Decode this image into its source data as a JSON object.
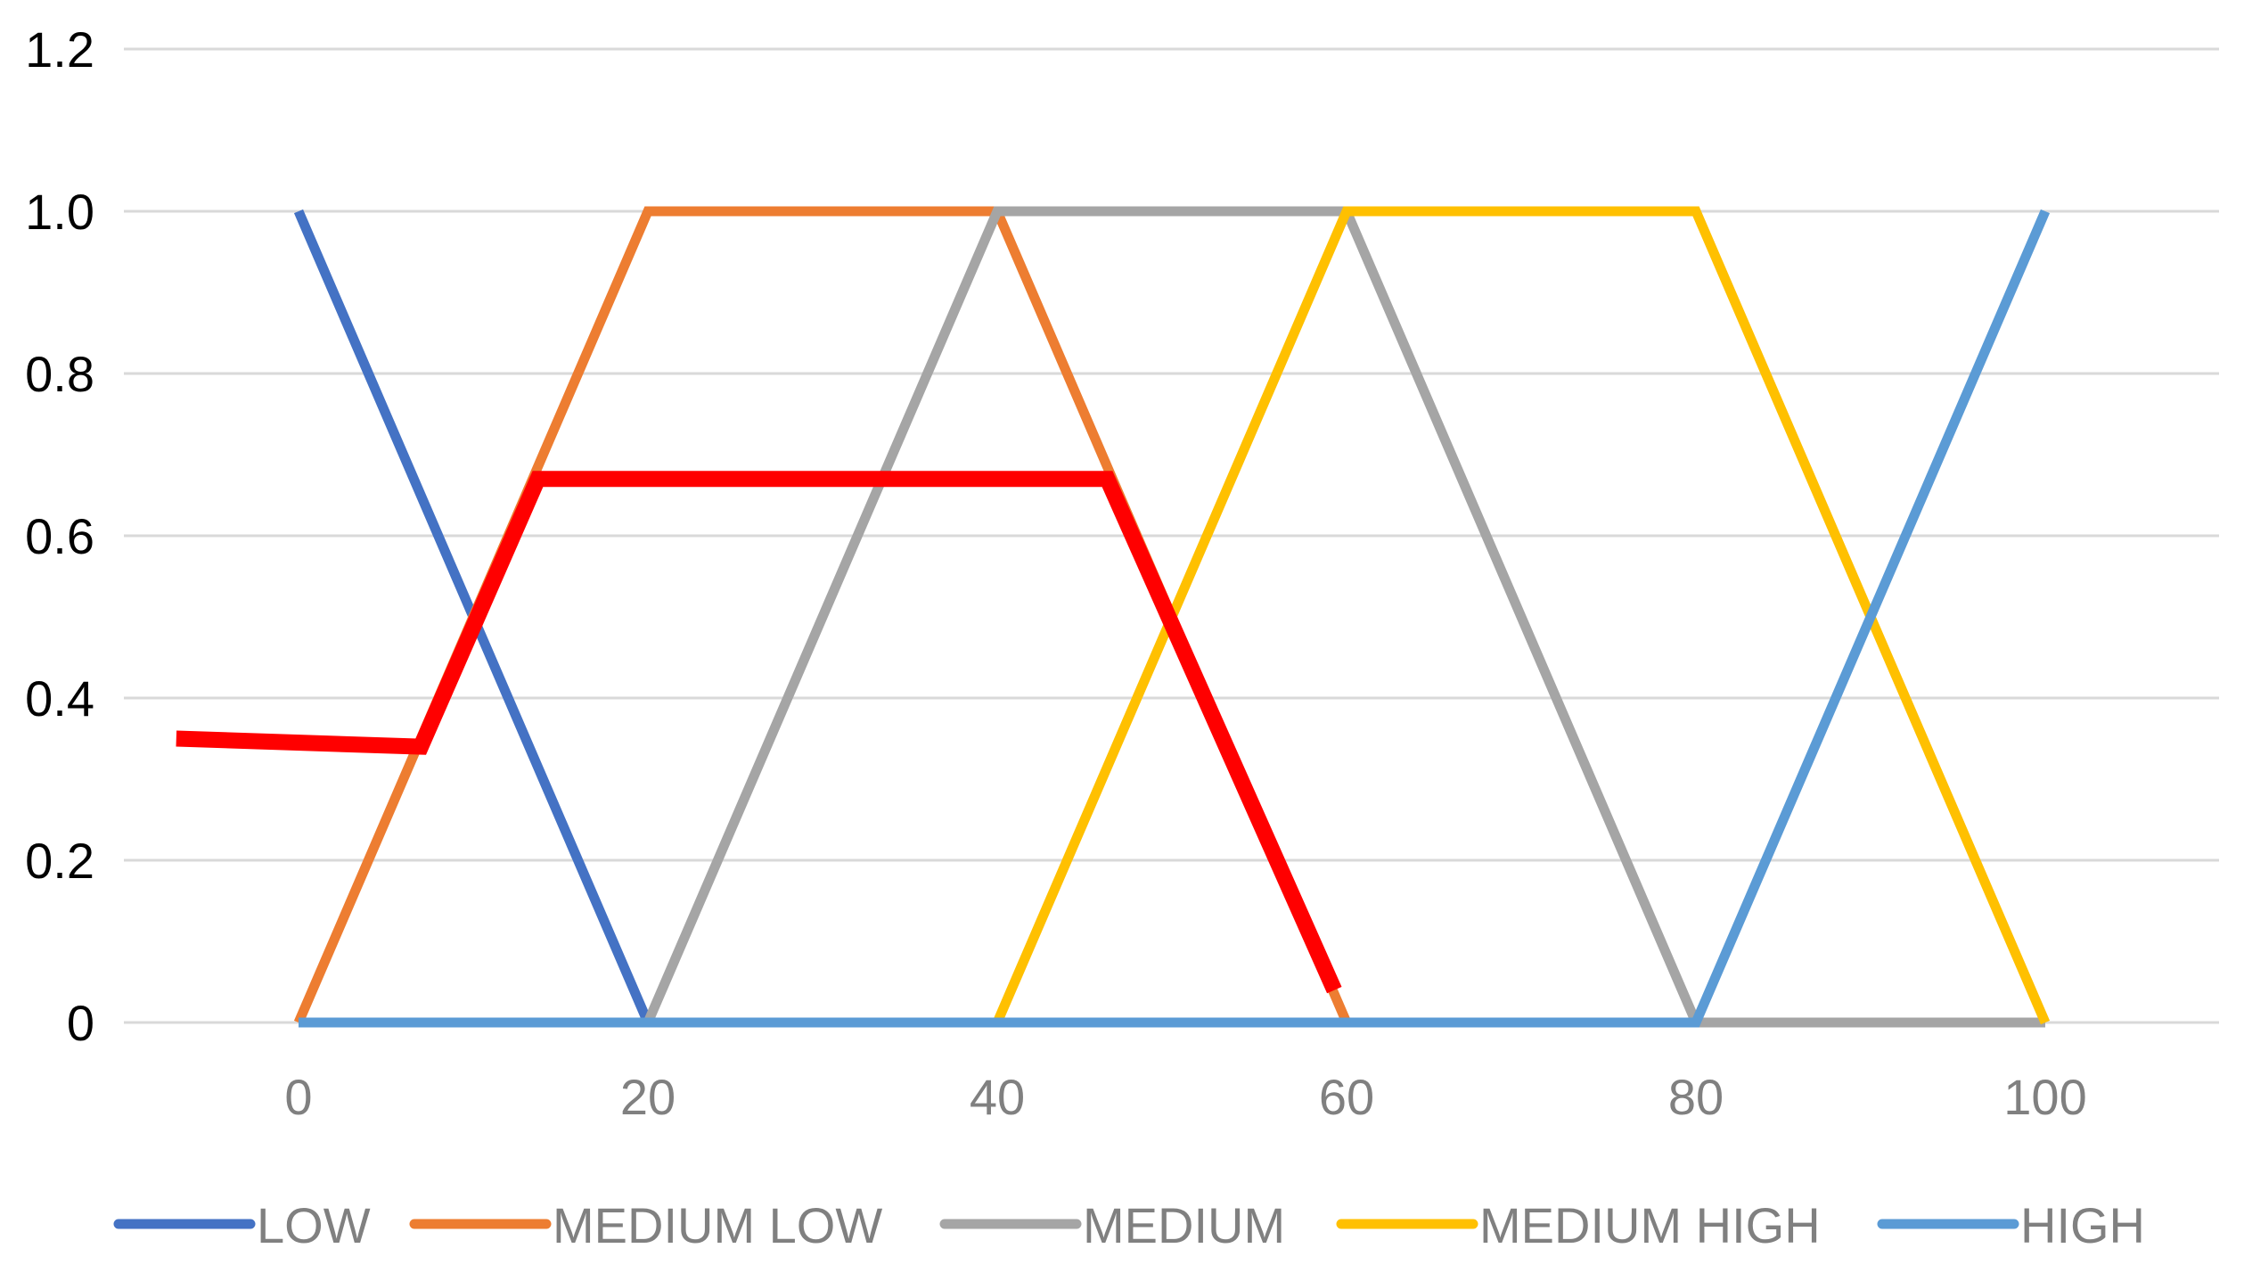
{
  "chart_data": {
    "type": "line",
    "title": "",
    "xlabel": "",
    "ylabel": "",
    "xlim": [
      0,
      100
    ],
    "ylim": [
      0,
      1.2
    ],
    "grid": true,
    "legend_position": "bottom",
    "x_ticks": [
      0,
      20,
      40,
      60,
      80,
      100
    ],
    "x_tick_labels": [
      "0",
      "20",
      "40",
      "60",
      "80",
      "100"
    ],
    "y_ticks": [
      0,
      0.2,
      0.4,
      0.6,
      0.8,
      1.0,
      1.2
    ],
    "y_tick_labels": [
      "0",
      "0.2",
      "0.4",
      "0.6",
      "0.8",
      "1.0",
      "1.2"
    ],
    "series": [
      {
        "name": "LOW",
        "color": "#4472C4",
        "x": [
          0,
          20,
          100
        ],
        "y": [
          1,
          0,
          0
        ],
        "in_legend": true
      },
      {
        "name": "MEDIUM LOW",
        "color": "#ED7D31",
        "x": [
          0,
          20,
          40,
          60
        ],
        "y": [
          0,
          1,
          1,
          0
        ],
        "in_legend": true
      },
      {
        "name": "MEDIUM",
        "color": "#A5A5A5",
        "x": [
          20,
          40,
          60,
          80,
          100
        ],
        "y": [
          0,
          1,
          1,
          0,
          0
        ],
        "in_legend": true
      },
      {
        "name": "MEDIUM HIGH",
        "color": "#FFC000",
        "x": [
          40,
          60,
          80,
          100
        ],
        "y": [
          0,
          1,
          1,
          0
        ],
        "in_legend": true
      },
      {
        "name": "HIGH",
        "color": "#5B9BD5",
        "x": [
          0,
          80,
          100
        ],
        "y": [
          0,
          0,
          1
        ],
        "in_legend": true
      },
      {
        "name": "",
        "color": "#FF0000",
        "x": [
          -7,
          7,
          13.7,
          46.3,
          59.3
        ],
        "y": [
          0.35,
          0.34,
          0.67,
          0.67,
          0.04
        ],
        "in_legend": false
      }
    ]
  }
}
